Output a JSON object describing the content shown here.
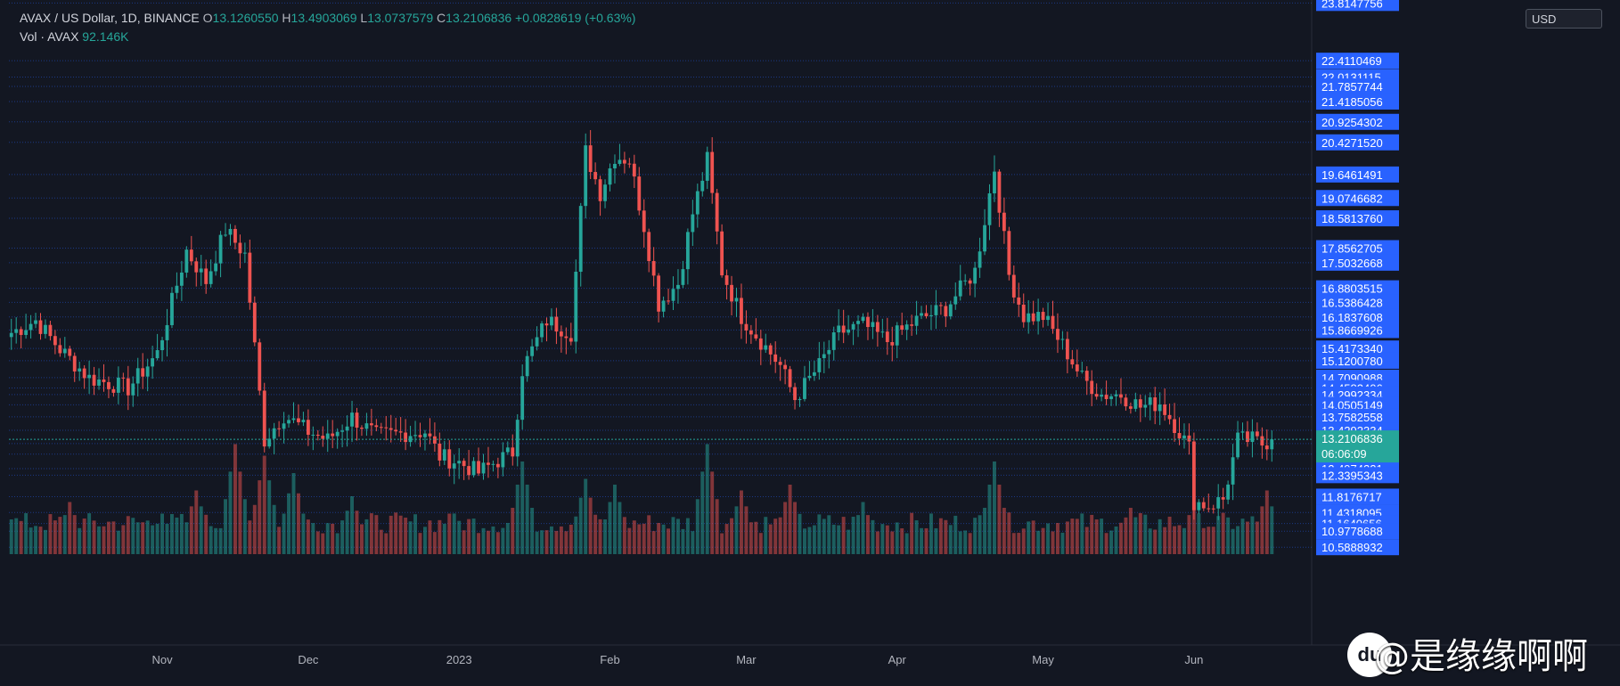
{
  "legend": {
    "symbol": "AVAX / US Dollar, 1D, BINANCE",
    "o_label": "O",
    "o_value": "13.1260550",
    "h_label": "H",
    "h_value": "13.4903069",
    "l_label": "L",
    "l_value": "13.0737579",
    "c_label": "C",
    "c_value": "13.2106836",
    "change": "+0.0828619 (+0.63%)",
    "vol_label": "Vol · AVAX",
    "vol_value": "92.146K"
  },
  "price_axis": {
    "unit": "USD",
    "current_price": "13.2106836",
    "countdown": "06:06:09"
  },
  "watermark": {
    "logo_text": "du",
    "text": "@是缘缘啊啊"
  },
  "colors": {
    "background": "#131722",
    "up": "#26a69a",
    "down": "#ef5350",
    "label_bg": "#2962ff",
    "grid": "#2962ff",
    "current_label": "#26a69a"
  },
  "chart_data": {
    "type": "candlestick",
    "symbol": "AVAXUSD",
    "interval": "1D",
    "price_levels": [
      23.8147756,
      22.4110469,
      22.0131115,
      21.7857744,
      21.4185056,
      20.9254302,
      20.427152,
      19.6461491,
      19.0746682,
      18.581376,
      17.8562705,
      17.5032668,
      16.8803515,
      16.5386428,
      16.1837608,
      15.8669926,
      15.417334,
      15.120078,
      14.7090988,
      14.4582406,
      14.2992334,
      14.0505149,
      13.7582558,
      13.4292334,
      13.1061671,
      12.8503743,
      12.4974221,
      12.3395343,
      11.8176717,
      11.4318095,
      11.1640656,
      10.9778688,
      10.5888932
    ],
    "price_level_labels": [
      "23.8147756",
      "22.4110469",
      "22.0131115",
      "21.7857744",
      "21.4185056",
      "20.9254302",
      "20.4271520",
      "19.6461491",
      "19.0746682",
      "18.5813760",
      "17.8562705",
      "17.5032668",
      "16.8803515",
      "16.5386428",
      "16.1837608",
      "15.8669926",
      "15.4173340",
      "15.1200780",
      "14.7090988",
      "14.4582406",
      "14.2992334",
      "14.0505149",
      "13.7582558",
      "13.4292334",
      "13.1061671",
      "12.8503743",
      "12.4974221",
      "12.3395343",
      "11.8176717",
      "11.4318095",
      "11.1640656",
      "10.9778688",
      "10.5888932"
    ],
    "x_ticks": [
      "Nov",
      "Dec",
      "2023",
      "Feb",
      "Mar",
      "Apr",
      "May",
      "Jun"
    ],
    "x_tick_days": [
      31,
      61,
      92,
      123,
      151,
      182,
      212,
      243
    ],
    "days_shown": 260,
    "current": {
      "open": 13.126055,
      "high": 13.4903069,
      "low": 13.0737579,
      "close": 13.2106836
    },
    "anchors": [
      [
        0,
        15.8
      ],
      [
        5,
        16.1
      ],
      [
        10,
        15.4
      ],
      [
        16,
        14.7
      ],
      [
        24,
        14.45
      ],
      [
        30,
        15.3
      ],
      [
        36,
        17.8
      ],
      [
        40,
        17.05
      ],
      [
        44,
        18.3
      ],
      [
        48,
        17.7
      ],
      [
        52,
        13.2
      ],
      [
        56,
        13.8
      ],
      [
        61,
        13.4
      ],
      [
        65,
        13.2
      ],
      [
        70,
        13.75
      ],
      [
        75,
        13.3
      ],
      [
        80,
        13.35
      ],
      [
        85,
        13.4
      ],
      [
        88,
        12.8
      ],
      [
        92,
        12.65
      ],
      [
        96,
        12.4
      ],
      [
        100,
        12.7
      ],
      [
        103,
        12.9
      ],
      [
        105,
        14.9
      ],
      [
        110,
        16.1
      ],
      [
        115,
        15.8
      ],
      [
        118,
        20.2
      ],
      [
        121,
        19.2
      ],
      [
        124,
        20.1
      ],
      [
        127,
        20.0
      ],
      [
        130,
        18.4
      ],
      [
        133,
        16.5
      ],
      [
        137,
        17.0
      ],
      [
        140,
        18.7
      ],
      [
        143,
        20.0
      ],
      [
        146,
        17.3
      ],
      [
        150,
        16.2
      ],
      [
        154,
        15.6
      ],
      [
        158,
        15.0
      ],
      [
        161,
        14.2
      ],
      [
        166,
        15.0
      ],
      [
        170,
        15.8
      ],
      [
        175,
        16.0
      ],
      [
        180,
        15.6
      ],
      [
        186,
        16.1
      ],
      [
        192,
        16.4
      ],
      [
        198,
        17.3
      ],
      [
        202,
        19.8
      ],
      [
        205,
        17.2
      ],
      [
        208,
        16.2
      ],
      [
        212,
        16.2
      ],
      [
        216,
        15.5
      ],
      [
        220,
        14.7
      ],
      [
        224,
        14.3
      ],
      [
        228,
        14.3
      ],
      [
        232,
        14.0
      ],
      [
        236,
        14.1
      ],
      [
        240,
        13.4
      ],
      [
        242,
        13.0
      ],
      [
        243,
        11.7
      ],
      [
        246,
        11.6
      ],
      [
        249,
        11.75
      ],
      [
        252,
        13.2
      ],
      [
        255,
        13.2
      ],
      [
        257,
        13.1
      ],
      [
        259,
        13.21
      ]
    ],
    "volume": {
      "label": "Vol · AVAX",
      "last": "92.146K",
      "peaks": [
        [
          0,
          0.3
        ],
        [
          12,
          0.45
        ],
        [
          31,
          0.35
        ],
        [
          38,
          0.55
        ],
        [
          46,
          0.95
        ],
        [
          52,
          0.85
        ],
        [
          58,
          0.7
        ],
        [
          70,
          0.5
        ],
        [
          90,
          0.35
        ],
        [
          105,
          0.8
        ],
        [
          118,
          0.65
        ],
        [
          124,
          0.6
        ],
        [
          143,
          0.95
        ],
        [
          150,
          0.55
        ],
        [
          160,
          0.6
        ],
        [
          175,
          0.45
        ],
        [
          202,
          0.8
        ],
        [
          230,
          0.4
        ],
        [
          243,
          0.45
        ],
        [
          258,
          0.55
        ]
      ]
    }
  }
}
